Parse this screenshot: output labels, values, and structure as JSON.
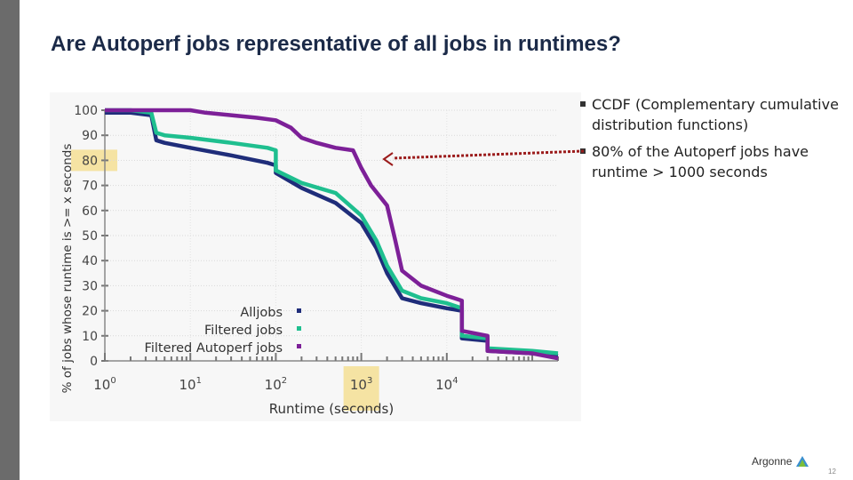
{
  "slide": {
    "title": "Are Autoperf jobs representative of all jobs in runtimes?",
    "page_number": "12",
    "logo_text": "Argonne",
    "colors": {
      "title": "#1b2a48",
      "left_bar": "#6b6b6b",
      "highlight": "#f4d35e",
      "arrow": "#9b1b1b"
    }
  },
  "bullets": [
    "CCDF (Complementary cumulative distribution functions)",
    "80% of the Autoperf jobs have runtime > 1000 seconds"
  ],
  "chart_data": {
    "type": "line",
    "title": "",
    "xlabel": "Runtime (seconds)",
    "ylabel": "% of jobs whose runtime is >= x seconds",
    "x_scale": "log",
    "xlim": [
      1,
      200000
    ],
    "ylim": [
      0,
      100
    ],
    "x_ticks": [
      {
        "base": "10",
        "exp": "0",
        "value": 1
      },
      {
        "base": "10",
        "exp": "1",
        "value": 10
      },
      {
        "base": "10",
        "exp": "2",
        "value": 100
      },
      {
        "base": "10",
        "exp": "3",
        "value": 1000
      },
      {
        "base": "10",
        "exp": "4",
        "value": 10000
      }
    ],
    "y_ticks": [
      "0",
      "10",
      "20",
      "30",
      "40",
      "50",
      "60",
      "70",
      "80",
      "90",
      "100"
    ],
    "grid": true,
    "legend_position": "bottom-left",
    "highlights": [
      "y = 80",
      "x = 10^3"
    ],
    "series": [
      {
        "name": "Alljobs",
        "color": "#1f2d7a",
        "x": [
          1,
          2,
          3.5,
          4,
          5,
          10,
          30,
          80,
          100,
          100,
          200,
          500,
          1000,
          1500,
          2000,
          3000,
          5000,
          10000,
          15000,
          15000,
          30000,
          30000,
          100000,
          200000
        ],
        "y": [
          99,
          99,
          98,
          88,
          87,
          85,
          82,
          79,
          78,
          75,
          69,
          63,
          55,
          45,
          35,
          25,
          23,
          21,
          20,
          9,
          8,
          4,
          3,
          2
        ]
      },
      {
        "name": "Filtered jobs",
        "color": "#1fbf8f",
        "x": [
          1,
          2,
          3.5,
          4,
          5,
          10,
          30,
          80,
          100,
          100,
          200,
          500,
          1000,
          1500,
          2000,
          3000,
          5000,
          10000,
          15000,
          15000,
          30000,
          30000,
          100000,
          200000
        ],
        "y": [
          100,
          100,
          99,
          91,
          90,
          89,
          87,
          85,
          84,
          76,
          71,
          67,
          58,
          48,
          38,
          28,
          25,
          23,
          21,
          10,
          9,
          5,
          4,
          3
        ]
      },
      {
        "name": "Filtered Autoperf jobs",
        "color": "#7d2098",
        "x": [
          1,
          5,
          10,
          15,
          30,
          60,
          100,
          150,
          200,
          300,
          500,
          800,
          1000,
          1300,
          2000,
          2500,
          3000,
          5000,
          10000,
          15000,
          15000,
          30000,
          30000,
          100000,
          200000
        ],
        "y": [
          100,
          100,
          100,
          99,
          98,
          97,
          96,
          93,
          89,
          87,
          85,
          84,
          77,
          70,
          62,
          48,
          36,
          30,
          26,
          24,
          12,
          10,
          4,
          3,
          1
        ]
      }
    ]
  }
}
